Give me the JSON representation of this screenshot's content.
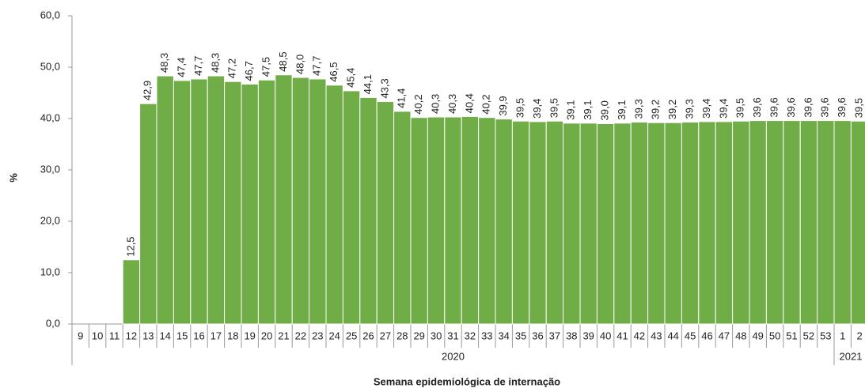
{
  "chart_data": {
    "type": "bar",
    "categories": [
      "9",
      "10",
      "11",
      "12",
      "13",
      "14",
      "15",
      "16",
      "17",
      "18",
      "19",
      "20",
      "21",
      "22",
      "23",
      "24",
      "25",
      "26",
      "27",
      "28",
      "29",
      "30",
      "31",
      "32",
      "33",
      "34",
      "35",
      "36",
      "37",
      "38",
      "39",
      "40",
      "41",
      "42",
      "43",
      "44",
      "45",
      "46",
      "47",
      "48",
      "49",
      "50",
      "51",
      "52",
      "53",
      "1",
      "2"
    ],
    "values": [
      null,
      null,
      null,
      12.5,
      42.9,
      48.3,
      47.4,
      47.7,
      48.3,
      47.2,
      46.7,
      47.5,
      48.5,
      48.0,
      47.7,
      46.5,
      45.4,
      44.1,
      43.3,
      41.4,
      40.2,
      40.3,
      40.3,
      40.4,
      40.2,
      39.9,
      39.5,
      39.4,
      39.5,
      39.1,
      39.1,
      39.0,
      39.1,
      39.3,
      39.2,
      39.2,
      39.3,
      39.4,
      39.4,
      39.5,
      39.6,
      39.6,
      39.6,
      39.6,
      39.6,
      39.6,
      39.5
    ],
    "value_labels": [
      null,
      null,
      null,
      "12,5",
      "42,9",
      "48,3",
      "47,4",
      "47,7",
      "48,3",
      "47,2",
      "46,7",
      "47,5",
      "48,5",
      "48,0",
      "47,7",
      "46,5",
      "45,4",
      "44,1",
      "43,3",
      "41,4",
      "40,2",
      "40,3",
      "40,3",
      "40,4",
      "40,2",
      "39,9",
      "39,5",
      "39,4",
      "39,5",
      "39,1",
      "39,1",
      "39,0",
      "39,1",
      "39,3",
      "39,2",
      "39,2",
      "39,3",
      "39,4",
      "39,4",
      "39,5",
      "39,6",
      "39,6",
      "39,6",
      "39,6",
      "39,6",
      "39,6",
      "39,5"
    ],
    "color": "#70ad47",
    "ylim": [
      0,
      60
    ],
    "yticks": [
      {
        "value": 0,
        "label": "0,0"
      },
      {
        "value": 10,
        "label": "10,0"
      },
      {
        "value": 20,
        "label": "20,0"
      },
      {
        "value": 30,
        "label": "30,0"
      },
      {
        "value": 40,
        "label": "40,0"
      },
      {
        "value": 50,
        "label": "50,0"
      },
      {
        "value": 60,
        "label": "60,0"
      }
    ],
    "y_label": "%",
    "x_label": "Semana epidemiológica  de internação",
    "x_groups": [
      {
        "label": "2020",
        "first": "9",
        "last": "53"
      },
      {
        "label": "2021",
        "first": "1",
        "last": "2"
      }
    ]
  }
}
